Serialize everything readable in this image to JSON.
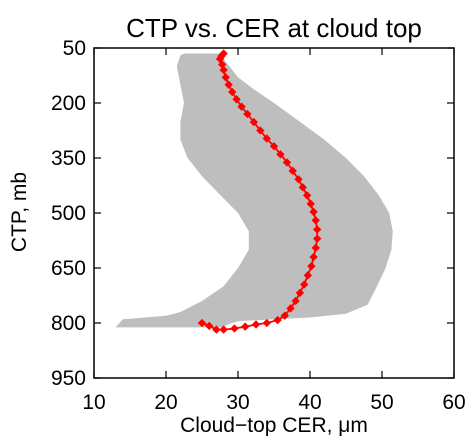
{
  "chart_data": {
    "type": "line",
    "title": "CTP vs. CER at cloud top",
    "xlabel": "Cloud−top CER, μm",
    "ylabel": "CTP, mb",
    "xlim": [
      10,
      60
    ],
    "ylim": [
      950,
      50
    ],
    "y_axis_inverted": true,
    "grid": false,
    "x_ticks": [
      "10",
      "20",
      "30",
      "40",
      "50",
      "60"
    ],
    "y_ticks": [
      "50",
      "200",
      "350",
      "500",
      "650",
      "800",
      "950"
    ],
    "series": [
      {
        "color": "#ff0000",
        "marker": "diamond",
        "x": [
          28.0,
          27.7,
          27.5,
          27.8,
          28.0,
          28.3,
          28.7,
          29.2,
          29.8,
          30.5,
          31.3,
          32.2,
          33.1,
          34.0,
          35.0,
          35.9,
          36.8,
          37.6,
          38.4,
          39.0,
          39.6,
          40.1,
          40.5,
          40.8,
          41.0,
          41.0,
          40.8,
          40.5,
          40.2,
          39.7,
          39.2,
          38.6,
          38.0,
          37.3,
          36.5,
          35.5,
          34.0,
          32.5,
          31.0,
          29.5,
          28.0,
          27.0,
          26.0,
          25.0
        ],
        "y": [
          65,
          72,
          80,
          95,
          110,
          130,
          150,
          170,
          190,
          210,
          230,
          252,
          275,
          297,
          318,
          340,
          362,
          385,
          408,
          430,
          452,
          475,
          497,
          520,
          545,
          570,
          595,
          620,
          645,
          670,
          695,
          718,
          740,
          760,
          780,
          792,
          800,
          804,
          810,
          815,
          818,
          818,
          808,
          800
        ]
      }
    ],
    "shaded_region": {
      "color": "#bebebe",
      "outline": [
        [
          22.6,
          65
        ],
        [
          28.5,
          65
        ],
        [
          28.0,
          80
        ],
        [
          28.8,
          100
        ],
        [
          30.0,
          130
        ],
        [
          32.0,
          160
        ],
        [
          35.0,
          200
        ],
        [
          38.5,
          250
        ],
        [
          42.0,
          300
        ],
        [
          45.0,
          350
        ],
        [
          47.5,
          400
        ],
        [
          49.5,
          450
        ],
        [
          51.0,
          500
        ],
        [
          51.5,
          550
        ],
        [
          51.3,
          600
        ],
        [
          50.5,
          650
        ],
        [
          49.3,
          700
        ],
        [
          48.0,
          750
        ],
        [
          45.0,
          775
        ],
        [
          40.0,
          785
        ],
        [
          35.0,
          790
        ],
        [
          30.0,
          795
        ],
        [
          28.5,
          805
        ],
        [
          28.0,
          812
        ],
        [
          13.0,
          812
        ],
        [
          14.0,
          790
        ],
        [
          17.0,
          785
        ],
        [
          20.0,
          780
        ],
        [
          22.0,
          770
        ],
        [
          25.0,
          740
        ],
        [
          28.0,
          700
        ],
        [
          30.0,
          650
        ],
        [
          31.5,
          600
        ],
        [
          31.5,
          550
        ],
        [
          30.0,
          500
        ],
        [
          27.5,
          450
        ],
        [
          25.0,
          400
        ],
        [
          23.0,
          350
        ],
        [
          22.0,
          300
        ],
        [
          22.0,
          250
        ],
        [
          22.5,
          200
        ],
        [
          22.0,
          150
        ],
        [
          21.5,
          100
        ],
        [
          22.0,
          70
        ]
      ]
    }
  }
}
